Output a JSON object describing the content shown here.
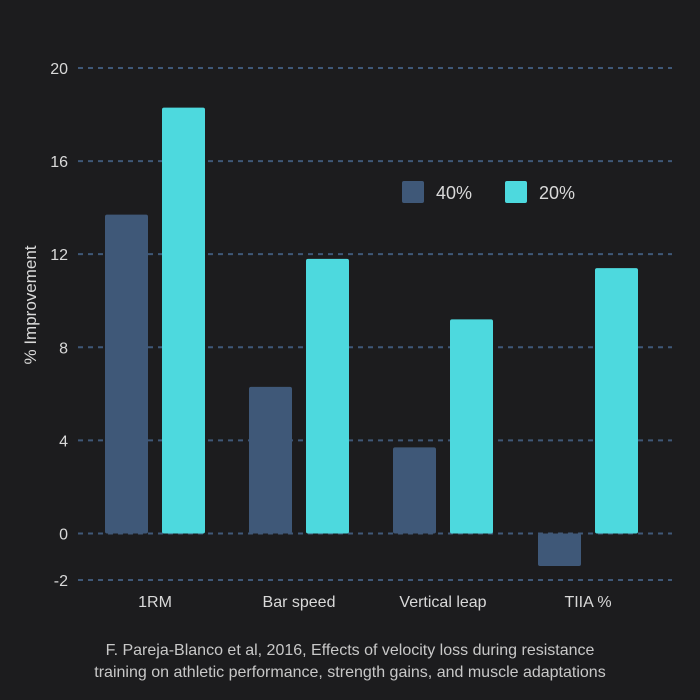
{
  "colors": {
    "background": "#1c1c1e",
    "series_40": "#3f5878",
    "series_20": "#4dd9de",
    "grid": "#3f5878",
    "text": "#d9d9d9"
  },
  "chart_data": {
    "type": "bar",
    "title": "",
    "xlabel": "",
    "ylabel": "% Improvement",
    "ylim": [
      -2,
      20
    ],
    "yticks": [
      -2,
      0,
      4,
      8,
      12,
      16,
      20
    ],
    "grid": true,
    "legend_position": "top-right",
    "categories": [
      "1RM",
      "Bar speed",
      "Vertical leap",
      "TIIA %"
    ],
    "series": [
      {
        "name": "40%",
        "color": "#3f5878",
        "values": [
          13.7,
          6.3,
          3.7,
          -1.4
        ]
      },
      {
        "name": "20%",
        "color": "#4dd9de",
        "values": [
          18.3,
          11.8,
          9.2,
          11.4
        ]
      }
    ]
  },
  "caption": {
    "line1": "F. Pareja-Blanco et al, 2016,  Effects of velocity loss during resistance",
    "line2": "training on athletic performance, strength gains, and muscle adaptations"
  }
}
